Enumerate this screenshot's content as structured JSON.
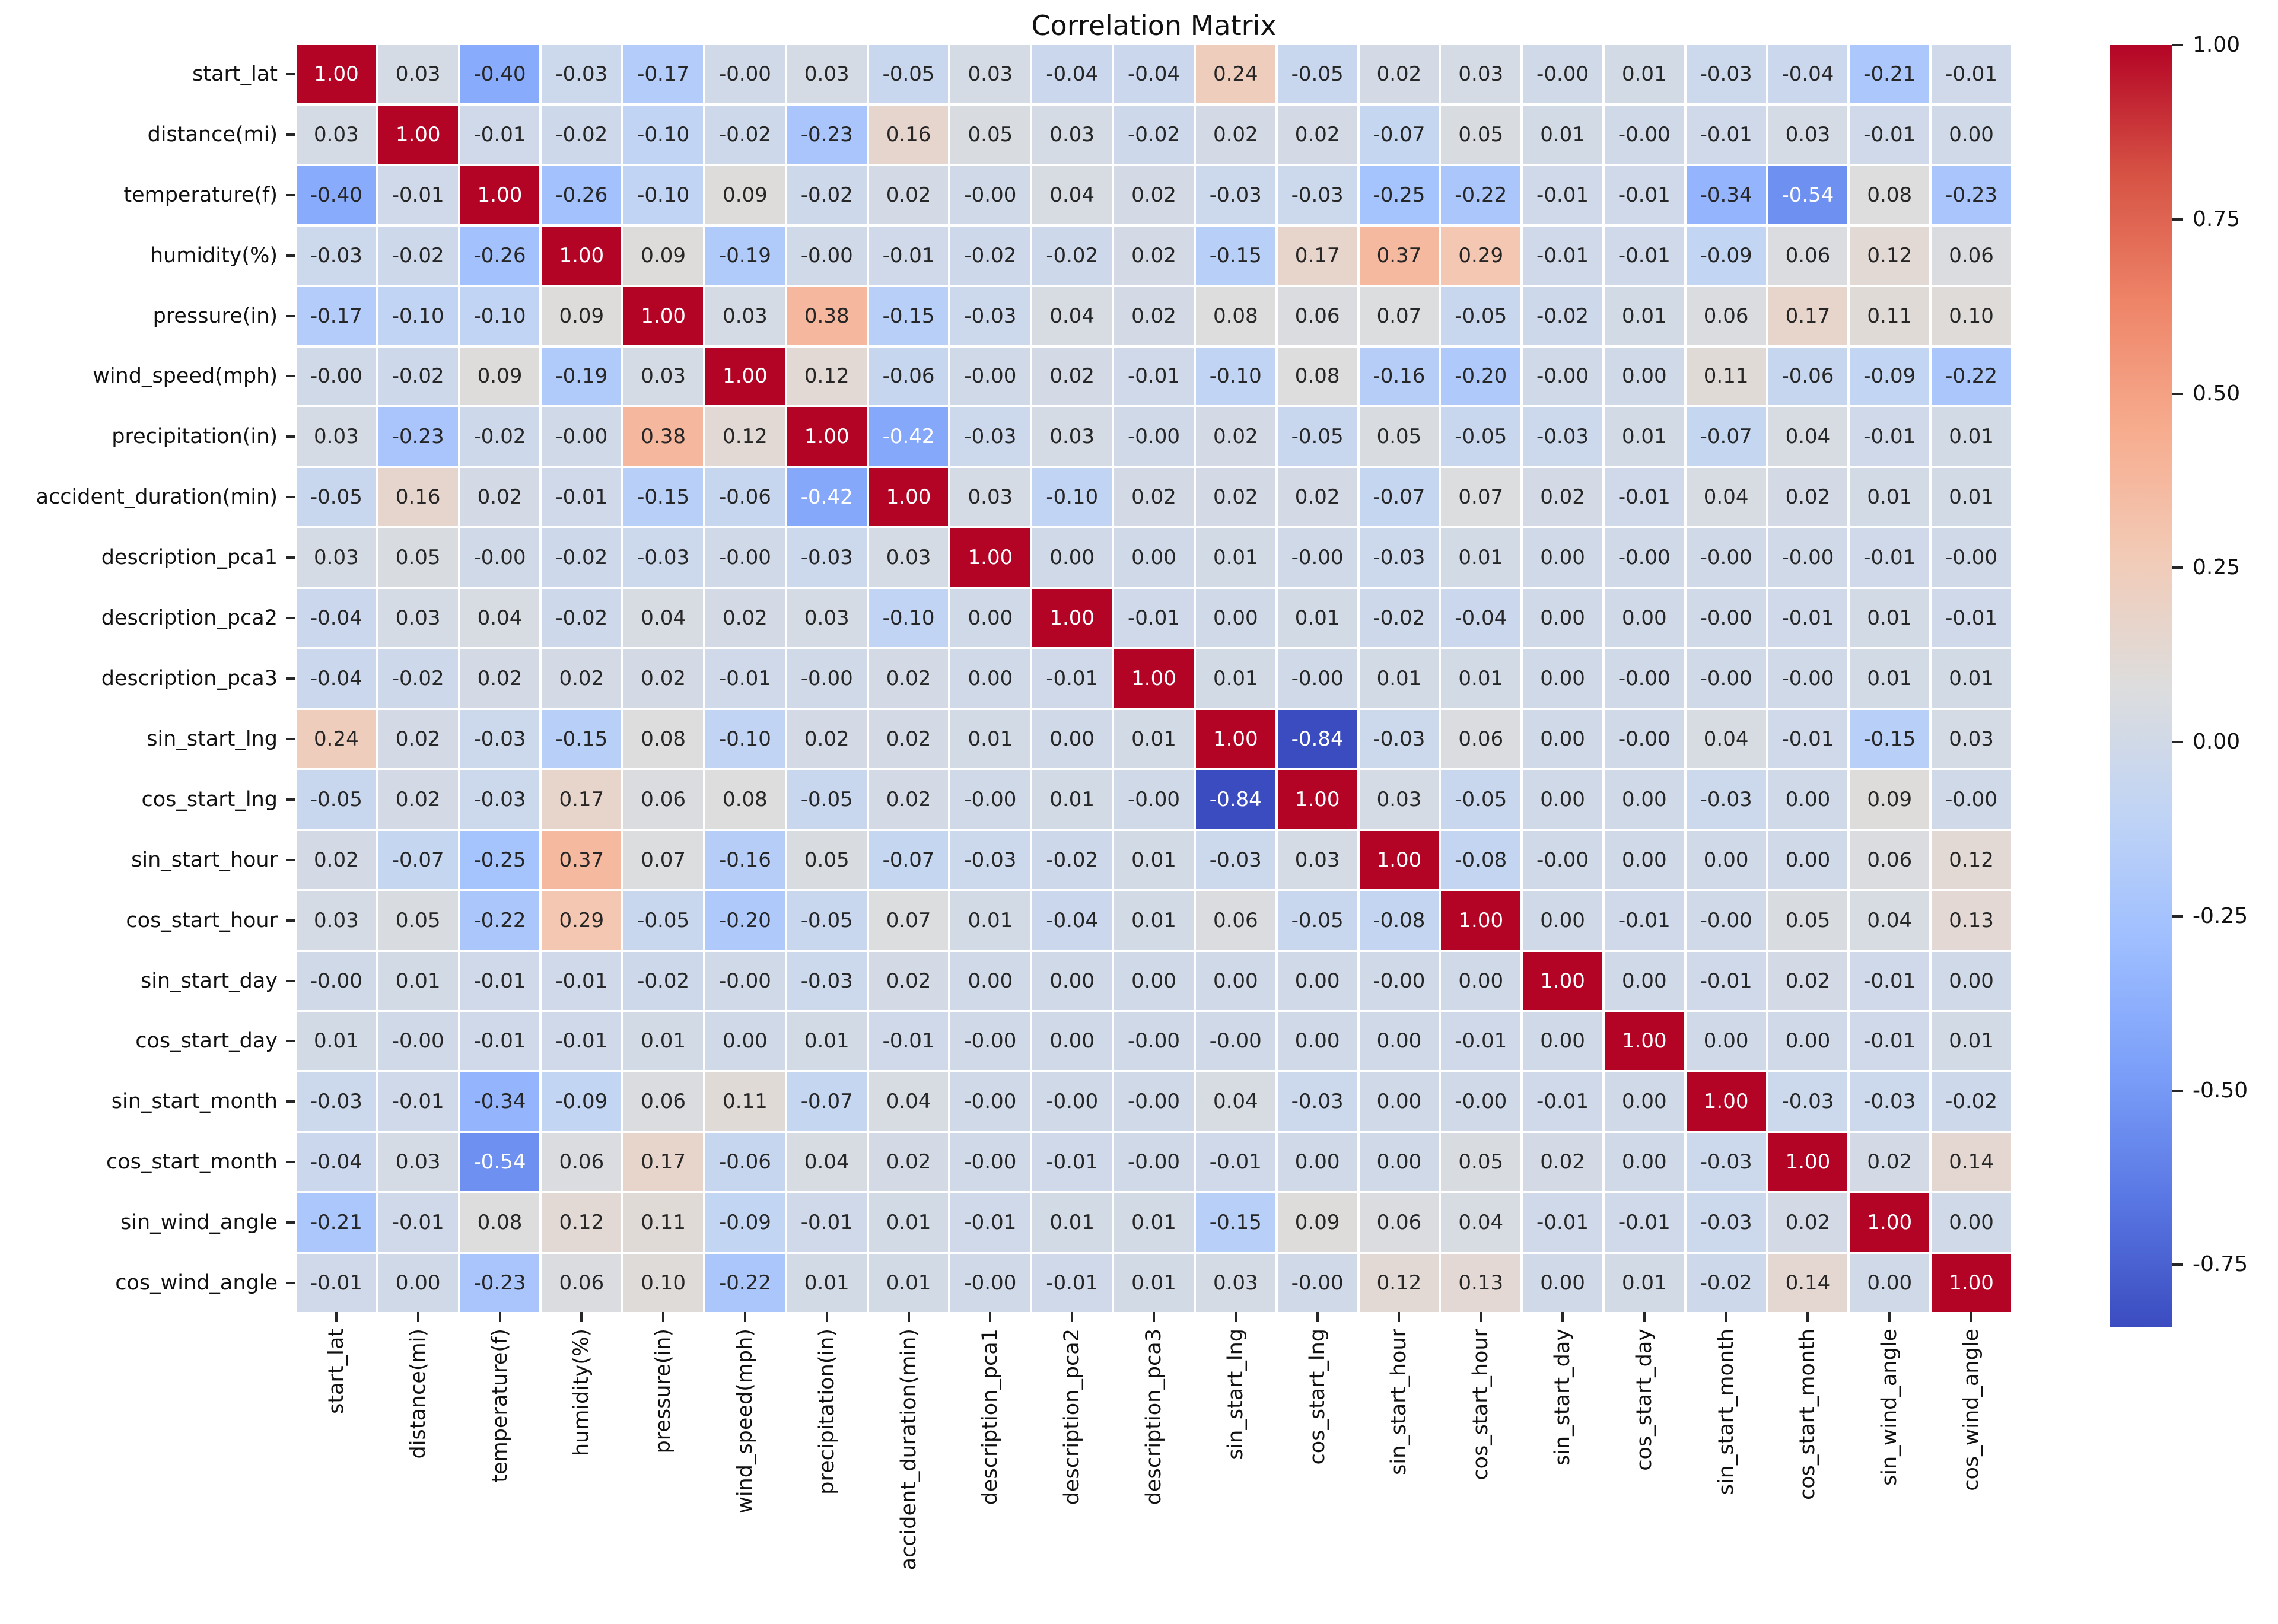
{
  "title": "Correlation Matrix",
  "chart_data": {
    "type": "heatmap",
    "title": "Correlation Matrix",
    "colormap": "coolwarm",
    "vmin": -0.84,
    "vmax": 1.0,
    "grid_line_color": "#ffffff",
    "annotation_dark_color": "#262626",
    "annotation_light_color": "#ffffff",
    "axis_text_color": "#111111",
    "colormap_anchors": [
      "#3B4CC0",
      "#5977E3",
      "#7B9FF9",
      "#9EBEFF",
      "#C0D4F5",
      "#DDDDDD",
      "#F2CBB7",
      "#F7AC8E",
      "#EE8468",
      "#D65244",
      "#B40426"
    ],
    "legend_position": "right",
    "colorbar_ticks": [
      "1.00",
      "0.75",
      "0.50",
      "0.25",
      "0.00",
      "-0.25",
      "-0.50",
      "-0.75"
    ],
    "categories": [
      "start_lat",
      "distance(mi)",
      "temperature(f)",
      "humidity(%)",
      "pressure(in)",
      "wind_speed(mph)",
      "precipitation(in)",
      "accident_duration(min)",
      "description_pca1",
      "description_pca2",
      "description_pca3",
      "sin_start_lng",
      "cos_start_lng",
      "sin_start_hour",
      "cos_start_hour",
      "sin_start_day",
      "cos_start_day",
      "sin_start_month",
      "cos_start_month",
      "sin_wind_angle",
      "cos_wind_angle"
    ],
    "matrix": [
      [
        "1.00",
        "0.03",
        "-0.40",
        "-0.03",
        "-0.17",
        "-0.00",
        "0.03",
        "-0.05",
        "0.03",
        "-0.04",
        "-0.04",
        "0.24",
        "-0.05",
        "0.02",
        "0.03",
        "-0.00",
        "0.01",
        "-0.03",
        "-0.04",
        "-0.21",
        "-0.01"
      ],
      [
        "0.03",
        "1.00",
        "-0.01",
        "-0.02",
        "-0.10",
        "-0.02",
        "-0.23",
        "0.16",
        "0.05",
        "0.03",
        "-0.02",
        "0.02",
        "0.02",
        "-0.07",
        "0.05",
        "0.01",
        "-0.00",
        "-0.01",
        "0.03",
        "-0.01",
        "0.00"
      ],
      [
        "-0.40",
        "-0.01",
        "1.00",
        "-0.26",
        "-0.10",
        "0.09",
        "-0.02",
        "0.02",
        "-0.00",
        "0.04",
        "0.02",
        "-0.03",
        "-0.03",
        "-0.25",
        "-0.22",
        "-0.01",
        "-0.01",
        "-0.34",
        "-0.54",
        "0.08",
        "-0.23"
      ],
      [
        "-0.03",
        "-0.02",
        "-0.26",
        "1.00",
        "0.09",
        "-0.19",
        "-0.00",
        "-0.01",
        "-0.02",
        "-0.02",
        "0.02",
        "-0.15",
        "0.17",
        "0.37",
        "0.29",
        "-0.01",
        "-0.01",
        "-0.09",
        "0.06",
        "0.12",
        "0.06"
      ],
      [
        "-0.17",
        "-0.10",
        "-0.10",
        "0.09",
        "1.00",
        "0.03",
        "0.38",
        "-0.15",
        "-0.03",
        "0.04",
        "0.02",
        "0.08",
        "0.06",
        "0.07",
        "-0.05",
        "-0.02",
        "0.01",
        "0.06",
        "0.17",
        "0.11",
        "0.10"
      ],
      [
        "-0.00",
        "-0.02",
        "0.09",
        "-0.19",
        "0.03",
        "1.00",
        "0.12",
        "-0.06",
        "-0.00",
        "0.02",
        "-0.01",
        "-0.10",
        "0.08",
        "-0.16",
        "-0.20",
        "-0.00",
        "0.00",
        "0.11",
        "-0.06",
        "-0.09",
        "-0.22"
      ],
      [
        "0.03",
        "-0.23",
        "-0.02",
        "-0.00",
        "0.38",
        "0.12",
        "1.00",
        "-0.42",
        "-0.03",
        "0.03",
        "-0.00",
        "0.02",
        "-0.05",
        "0.05",
        "-0.05",
        "-0.03",
        "0.01",
        "-0.07",
        "0.04",
        "-0.01",
        "0.01"
      ],
      [
        "-0.05",
        "0.16",
        "0.02",
        "-0.01",
        "-0.15",
        "-0.06",
        "-0.42",
        "1.00",
        "0.03",
        "-0.10",
        "0.02",
        "0.02",
        "0.02",
        "-0.07",
        "0.07",
        "0.02",
        "-0.01",
        "0.04",
        "0.02",
        "0.01",
        "0.01"
      ],
      [
        "0.03",
        "0.05",
        "-0.00",
        "-0.02",
        "-0.03",
        "-0.00",
        "-0.03",
        "0.03",
        "1.00",
        "0.00",
        "0.00",
        "0.01",
        "-0.00",
        "-0.03",
        "0.01",
        "0.00",
        "-0.00",
        "-0.00",
        "-0.00",
        "-0.01",
        "-0.00"
      ],
      [
        "-0.04",
        "0.03",
        "0.04",
        "-0.02",
        "0.04",
        "0.02",
        "0.03",
        "-0.10",
        "0.00",
        "1.00",
        "-0.01",
        "0.00",
        "0.01",
        "-0.02",
        "-0.04",
        "0.00",
        "0.00",
        "-0.00",
        "-0.01",
        "0.01",
        "-0.01"
      ],
      [
        "-0.04",
        "-0.02",
        "0.02",
        "0.02",
        "0.02",
        "-0.01",
        "-0.00",
        "0.02",
        "0.00",
        "-0.01",
        "1.00",
        "0.01",
        "-0.00",
        "0.01",
        "0.01",
        "0.00",
        "-0.00",
        "-0.00",
        "-0.00",
        "0.01",
        "0.01"
      ],
      [
        "0.24",
        "0.02",
        "-0.03",
        "-0.15",
        "0.08",
        "-0.10",
        "0.02",
        "0.02",
        "0.01",
        "0.00",
        "0.01",
        "1.00",
        "-0.84",
        "-0.03",
        "0.06",
        "0.00",
        "-0.00",
        "0.04",
        "-0.01",
        "-0.15",
        "0.03"
      ],
      [
        "-0.05",
        "0.02",
        "-0.03",
        "0.17",
        "0.06",
        "0.08",
        "-0.05",
        "0.02",
        "-0.00",
        "0.01",
        "-0.00",
        "-0.84",
        "1.00",
        "0.03",
        "-0.05",
        "0.00",
        "0.00",
        "-0.03",
        "0.00",
        "0.09",
        "-0.00"
      ],
      [
        "0.02",
        "-0.07",
        "-0.25",
        "0.37",
        "0.07",
        "-0.16",
        "0.05",
        "-0.07",
        "-0.03",
        "-0.02",
        "0.01",
        "-0.03",
        "0.03",
        "1.00",
        "-0.08",
        "-0.00",
        "0.00",
        "0.00",
        "0.00",
        "0.06",
        "0.12"
      ],
      [
        "0.03",
        "0.05",
        "-0.22",
        "0.29",
        "-0.05",
        "-0.20",
        "-0.05",
        "0.07",
        "0.01",
        "-0.04",
        "0.01",
        "0.06",
        "-0.05",
        "-0.08",
        "1.00",
        "0.00",
        "-0.01",
        "-0.00",
        "0.05",
        "0.04",
        "0.13"
      ],
      [
        "-0.00",
        "0.01",
        "-0.01",
        "-0.01",
        "-0.02",
        "-0.00",
        "-0.03",
        "0.02",
        "0.00",
        "0.00",
        "0.00",
        "0.00",
        "0.00",
        "-0.00",
        "0.00",
        "1.00",
        "0.00",
        "-0.01",
        "0.02",
        "-0.01",
        "0.00"
      ],
      [
        "0.01",
        "-0.00",
        "-0.01",
        "-0.01",
        "0.01",
        "0.00",
        "0.01",
        "-0.01",
        "-0.00",
        "0.00",
        "-0.00",
        "-0.00",
        "0.00",
        "0.00",
        "-0.01",
        "0.00",
        "1.00",
        "0.00",
        "0.00",
        "-0.01",
        "0.01"
      ],
      [
        "-0.03",
        "-0.01",
        "-0.34",
        "-0.09",
        "0.06",
        "0.11",
        "-0.07",
        "0.04",
        "-0.00",
        "-0.00",
        "-0.00",
        "0.04",
        "-0.03",
        "0.00",
        "-0.00",
        "-0.01",
        "0.00",
        "1.00",
        "-0.03",
        "-0.03",
        "-0.02"
      ],
      [
        "-0.04",
        "0.03",
        "-0.54",
        "0.06",
        "0.17",
        "-0.06",
        "0.04",
        "0.02",
        "-0.00",
        "-0.01",
        "-0.00",
        "-0.01",
        "0.00",
        "0.00",
        "0.05",
        "0.02",
        "0.00",
        "-0.03",
        "1.00",
        "0.02",
        "0.14"
      ],
      [
        "-0.21",
        "-0.01",
        "0.08",
        "0.12",
        "0.11",
        "-0.09",
        "-0.01",
        "0.01",
        "-0.01",
        "0.01",
        "0.01",
        "-0.15",
        "0.09",
        "0.06",
        "0.04",
        "-0.01",
        "-0.01",
        "-0.03",
        "0.02",
        "1.00",
        "0.00"
      ],
      [
        "-0.01",
        "0.00",
        "-0.23",
        "0.06",
        "0.10",
        "-0.22",
        "0.01",
        "0.01",
        "-0.00",
        "-0.01",
        "0.01",
        "0.03",
        "-0.00",
        "0.12",
        "0.13",
        "0.00",
        "0.01",
        "-0.02",
        "0.14",
        "0.00",
        "1.00"
      ]
    ]
  }
}
